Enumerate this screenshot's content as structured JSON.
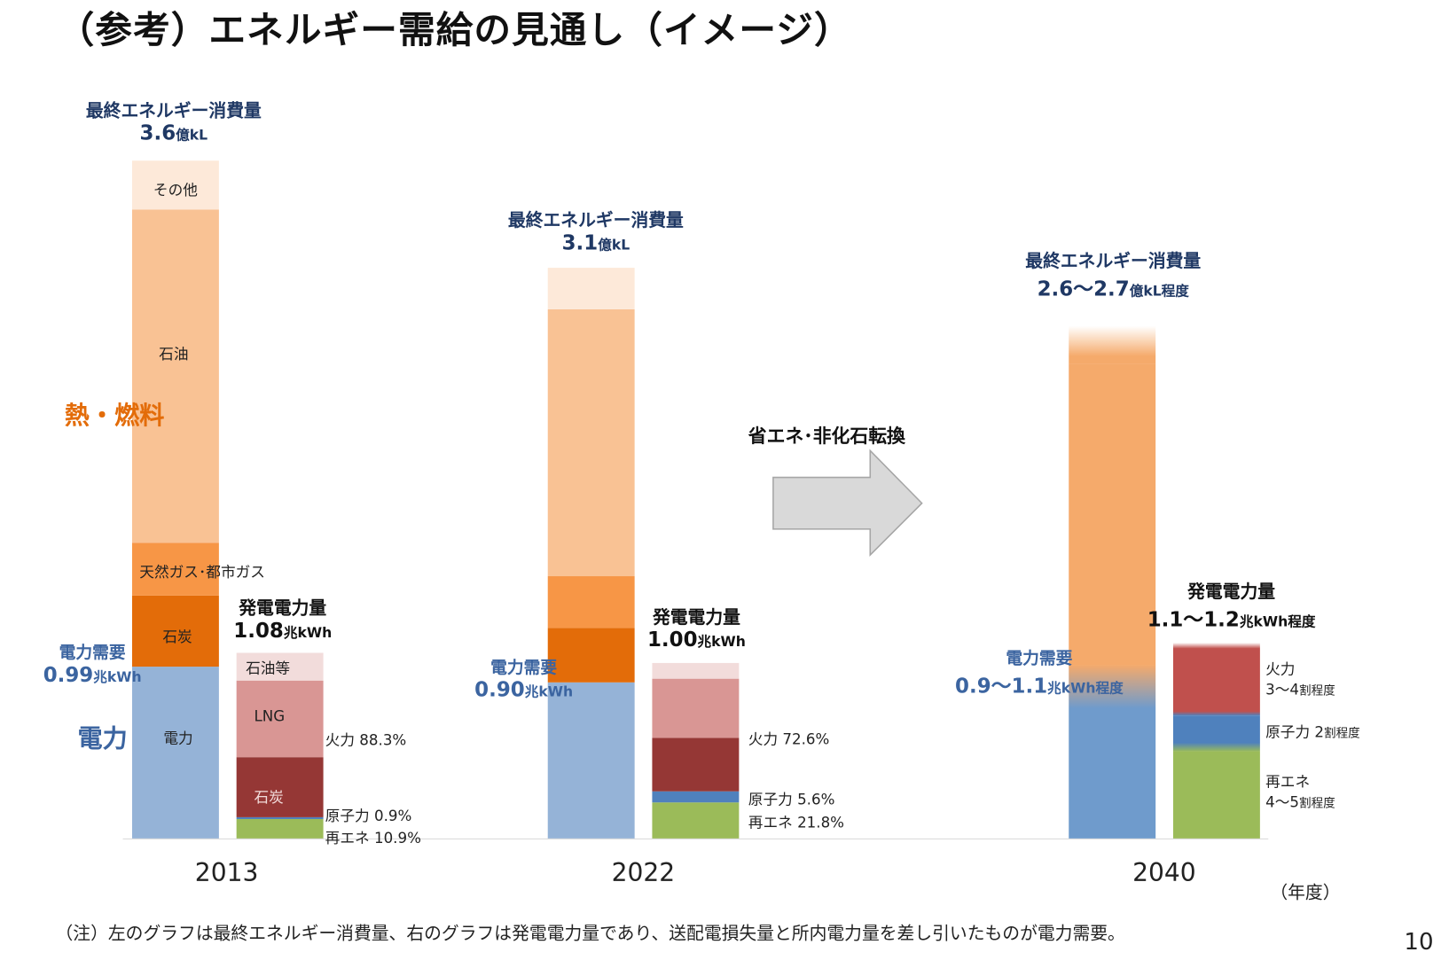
{
  "title": "（参考）エネルギー需給の見通し（イメージ）",
  "labels": {
    "heat_fuel": "熱・燃料",
    "electricity": "電力",
    "transition": "省エネ･非化石転換",
    "fiscal_year": "（年度）",
    "note": "（注）左のグラフは最終エネルギー消費量、右のグラフは発電電力量であり、送配電損失量と所内電力量を差し引いたものが電力需要。",
    "page_number": "10",
    "final_energy": "最終エネルギー消費量",
    "generation": "発電電力量",
    "demand": "電力需要"
  },
  "colors": {
    "other": "#fde9d9",
    "oil": "#f9c294",
    "gas": "#f79646",
    "coal": "#e36c09",
    "electricity": "#95b3d7",
    "electricity_2040": "#6f9bcc",
    "fossil_2040": "#f5aa6b",
    "oil_etc": "#f2dcdb",
    "lng": "#d99694",
    "coal_power": "#953735",
    "thermal_2040": "#c0504d",
    "nuclear": "#4f81bd",
    "renewable": "#9bbb59",
    "navy": "#1f3864",
    "steel": "#3b64a0",
    "orange": "#e36c09"
  },
  "chart_data": {
    "type": "bar",
    "stacked": true,
    "categories": [
      "2013",
      "2022",
      "2040"
    ],
    "xlabel": "（年度）",
    "final_energy_consumption": {
      "unit": "億kL",
      "totals": [
        "3.6",
        "3.1",
        "2.6～2.7"
      ],
      "total_suffix": [
        "億kL",
        "億kL",
        "億kL程度"
      ],
      "series": [
        {
          "key": "electricity",
          "name": "電力",
          "values": [
            0.91,
            0.83,
            0.92
          ]
        },
        {
          "key": "coal",
          "name": "石炭",
          "values": [
            0.38,
            0.29,
            0
          ]
        },
        {
          "key": "gas",
          "name": "天然ガス･都市ガス",
          "values": [
            0.28,
            0.27,
            0
          ]
        },
        {
          "key": "oil",
          "name": "石油",
          "values": [
            1.77,
            1.42,
            0
          ]
        },
        {
          "key": "fossil_2040",
          "name": "",
          "values": [
            0,
            0,
            1.6
          ]
        },
        {
          "key": "other",
          "name": "その他",
          "values": [
            0.26,
            0.22,
            0.2
          ]
        }
      ]
    },
    "power_demand": {
      "values": [
        "0.99",
        "0.90",
        "0.9～1.1"
      ],
      "suffix": [
        "兆kWh",
        "兆kWh",
        "兆kWh程度"
      ]
    },
    "power_generation": {
      "unit": "兆kWh",
      "totals": [
        "1.08",
        "1.00",
        "1.1～1.2"
      ],
      "total_suffix": [
        "兆kWh",
        "兆kWh",
        "兆kWh程度"
      ],
      "series": [
        {
          "key": "renewable",
          "name": "再エネ",
          "values": [
            0.11,
            0.21,
            0.5
          ]
        },
        {
          "key": "nuclear",
          "name": "原子力",
          "values": [
            0.01,
            0.06,
            0.21
          ]
        },
        {
          "key": "coal_power",
          "name": "石炭",
          "values": [
            0.35,
            0.31,
            0
          ]
        },
        {
          "key": "lng",
          "name": "LNG",
          "values": [
            0.44,
            0.34,
            0
          ]
        },
        {
          "key": "thermal_2040",
          "name": "火力",
          "values": [
            0,
            0,
            0.42
          ]
        },
        {
          "key": "oil_etc",
          "name": "石油等",
          "values": [
            0.16,
            0.09,
            0
          ]
        }
      ],
      "shares": {
        "2013": {
          "thermal": "火力 88.3%",
          "nuclear": "原子力 0.9%",
          "renewable": "再エネ 10.9%"
        },
        "2022": {
          "thermal": "火力 72.6%",
          "nuclear": "原子力 5.6%",
          "renewable": "再エネ 21.8%"
        },
        "2040": {
          "thermal_a": "火力",
          "thermal_b": "3～4",
          "nuclear_a": "原子力 2",
          "renewable_a": "再エネ",
          "renewable_b": "4～5",
          "suffix": "割程度"
        }
      }
    }
  }
}
